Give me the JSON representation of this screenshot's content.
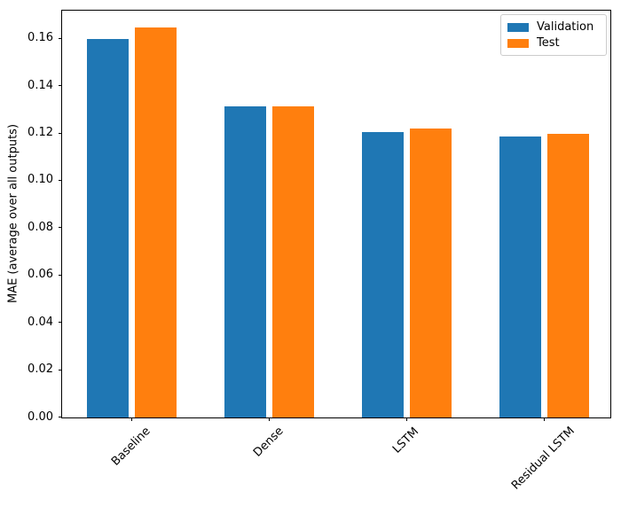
{
  "chart_data": {
    "type": "bar",
    "title": "",
    "xlabel": "",
    "ylabel": "MAE (average over all outputs)",
    "categories": [
      "Baseline",
      "Dense",
      "LSTM",
      "Residual LSTM"
    ],
    "series": [
      {
        "name": "Validation",
        "color": "#1f77b4",
        "values": [
          0.1597,
          0.1313,
          0.1203,
          0.1184
        ]
      },
      {
        "name": "Test",
        "color": "#ff7f0e",
        "values": [
          0.1646,
          0.1313,
          0.1219,
          0.1197
        ]
      }
    ],
    "ylim": [
      0,
      0.1717
    ],
    "yticks": [
      0,
      0.02,
      0.04,
      0.06,
      0.08,
      0.1,
      0.12,
      0.14,
      0.16
    ],
    "ytick_labels": [
      "0.00",
      "0.02",
      "0.04",
      "0.06",
      "0.08",
      "0.10",
      "0.12",
      "0.14",
      "0.16"
    ],
    "grid": false,
    "legend_position": "upper right",
    "axis_color": "#000000",
    "text_color": "#000000",
    "background_color": "#ffffff"
  }
}
